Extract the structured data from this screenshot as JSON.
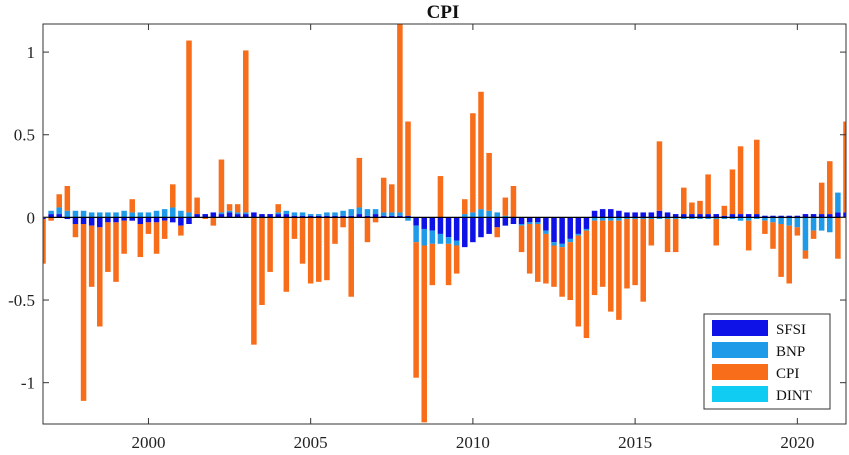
{
  "chart_data": {
    "type": "bar",
    "stacked": true,
    "title": "CPI",
    "xlabel": "",
    "ylabel": "",
    "xlim": [
      1996.75,
      2021.5
    ],
    "ylim": [
      -1.25,
      1.17
    ],
    "xticks": [
      2000,
      2005,
      2010,
      2015,
      2020
    ],
    "yticks": [
      1,
      0.5,
      0,
      -0.5,
      -1
    ],
    "ytick_labels": [
      "1",
      "0.5",
      "0",
      "-0.5",
      "-1"
    ],
    "grid": false,
    "legend_position": "bottom-right",
    "series": [
      {
        "name": "SFSI",
        "color": "#0f12e6"
      },
      {
        "name": "BNP",
        "color": "#1f9ae9"
      },
      {
        "name": "CPI",
        "color": "#f76d1a"
      },
      {
        "name": "DINT",
        "color": "#10ccf3"
      }
    ],
    "x": [
      1996.75,
      1997,
      1997.25,
      1997.5,
      1997.75,
      1998,
      1998.25,
      1998.5,
      1998.75,
      1999,
      1999.25,
      1999.5,
      1999.75,
      2000,
      2000.25,
      2000.5,
      2000.75,
      2001,
      2001.25,
      2001.5,
      2001.75,
      2002,
      2002.25,
      2002.5,
      2002.75,
      2003,
      2003.25,
      2003.5,
      2003.75,
      2004,
      2004.25,
      2004.5,
      2004.75,
      2005,
      2005.25,
      2005.5,
      2005.75,
      2006,
      2006.25,
      2006.5,
      2006.75,
      2007,
      2007.25,
      2007.5,
      2007.75,
      2008,
      2008.25,
      2008.5,
      2008.75,
      2009,
      2009.25,
      2009.5,
      2009.75,
      2010,
      2010.25,
      2010.5,
      2010.75,
      2011,
      2011.25,
      2011.5,
      2011.75,
      2012,
      2012.25,
      2012.5,
      2012.75,
      2013,
      2013.25,
      2013.5,
      2013.75,
      2014,
      2014.25,
      2014.5,
      2014.75,
      2015,
      2015.25,
      2015.5,
      2015.75,
      2016,
      2016.25,
      2016.5,
      2016.75,
      2017,
      2017.25,
      2017.5,
      2017.75,
      2018,
      2018.25,
      2018.5,
      2018.75,
      2019,
      2019.25,
      2019.5,
      2019.75,
      2020,
      2020.25,
      2020.5,
      2020.75,
      2021,
      2021.25,
      2021.5
    ],
    "values": {
      "SFSI": [
        -0.01,
        0.02,
        0.02,
        -0.01,
        -0.04,
        -0.04,
        -0.05,
        -0.06,
        -0.03,
        -0.03,
        -0.02,
        -0.02,
        -0.04,
        -0.03,
        -0.03,
        -0.02,
        -0.03,
        -0.05,
        -0.04,
        0.02,
        0.02,
        0.03,
        0.02,
        0.03,
        0.02,
        0.02,
        0.03,
        0.02,
        0.02,
        0.02,
        0.02,
        0.01,
        0.01,
        0.01,
        0.01,
        0.01,
        0.01,
        0.01,
        0.01,
        0.02,
        0.01,
        0.02,
        0.01,
        0.01,
        0.01,
        0.01,
        -0.05,
        -0.07,
        -0.08,
        -0.1,
        -0.12,
        -0.14,
        -0.18,
        -0.15,
        -0.12,
        -0.1,
        -0.06,
        -0.05,
        -0.04,
        -0.04,
        -0.03,
        -0.03,
        -0.08,
        -0.15,
        -0.16,
        -0.13,
        -0.1,
        -0.07,
        0.04,
        0.05,
        0.05,
        0.04,
        0.03,
        0.03,
        0.03,
        0.03,
        0.04,
        0.03,
        0.02,
        0.02,
        0.02,
        0.02,
        0.02,
        0.02,
        0.01,
        0.02,
        0.02,
        0.02,
        0.02,
        0.01,
        0.01,
        0.01,
        0.01,
        0.01,
        0.02,
        0.02,
        0.02,
        0.02,
        0.03,
        0.03
      ],
      "BNP": [
        0.0,
        0.02,
        0.04,
        0.04,
        0.04,
        0.04,
        0.03,
        0.03,
        0.03,
        0.03,
        0.04,
        0.03,
        0.03,
        0.03,
        0.04,
        0.05,
        0.06,
        0.04,
        0.03,
        0.0,
        0.0,
        0.0,
        0.01,
        0.01,
        0.01,
        0.01,
        0.0,
        0.0,
        0.0,
        0.01,
        0.02,
        0.02,
        0.02,
        0.01,
        0.01,
        0.02,
        0.02,
        0.03,
        0.04,
        0.04,
        0.04,
        0.03,
        0.02,
        0.02,
        0.02,
        -0.02,
        -0.1,
        -0.1,
        -0.08,
        -0.06,
        -0.04,
        -0.03,
        0.02,
        0.03,
        0.05,
        0.04,
        0.03,
        0.01,
        0.0,
        -0.01,
        -0.01,
        -0.01,
        -0.02,
        -0.02,
        -0.02,
        -0.02,
        -0.01,
        -0.01,
        -0.02,
        -0.02,
        -0.02,
        -0.02,
        -0.01,
        -0.01,
        -0.01,
        -0.01,
        -0.01,
        -0.01,
        -0.01,
        -0.01,
        -0.01,
        -0.01,
        -0.01,
        -0.01,
        -0.01,
        -0.01,
        -0.02,
        -0.02,
        -0.01,
        -0.02,
        -0.03,
        -0.04,
        -0.05,
        -0.06,
        -0.2,
        -0.08,
        -0.08,
        -0.09,
        0.12,
        0.0
      ],
      "CPI": [
        -0.27,
        -0.02,
        0.08,
        0.15,
        -0.08,
        -1.07,
        -0.37,
        -0.6,
        -0.3,
        -0.36,
        -0.2,
        0.08,
        -0.2,
        -0.07,
        -0.19,
        -0.11,
        0.14,
        -0.06,
        1.04,
        0.1,
        -0.01,
        -0.05,
        0.32,
        0.04,
        0.05,
        0.98,
        -0.77,
        -0.53,
        -0.33,
        0.05,
        -0.45,
        -0.13,
        -0.28,
        -0.4,
        -0.39,
        -0.38,
        -0.16,
        -0.06,
        -0.48,
        0.3,
        -0.15,
        -0.03,
        0.21,
        0.17,
        1.14,
        0.57,
        -0.82,
        -1.07,
        -0.25,
        0.25,
        -0.25,
        -0.17,
        0.09,
        0.6,
        0.71,
        0.35,
        -0.06,
        0.11,
        0.19,
        -0.16,
        -0.3,
        -0.35,
        -0.3,
        -0.25,
        -0.3,
        -0.35,
        -0.55,
        -0.65,
        -0.45,
        -0.4,
        -0.55,
        -0.6,
        -0.42,
        -0.4,
        -0.5,
        -0.16,
        0.42,
        -0.2,
        -0.2,
        0.16,
        0.07,
        0.08,
        0.24,
        -0.16,
        0.06,
        0.27,
        0.41,
        -0.18,
        0.45,
        -0.08,
        -0.16,
        -0.32,
        -0.35,
        -0.05,
        -0.05,
        -0.05,
        0.19,
        0.32,
        -0.25,
        0.55
      ],
      "DINT": [
        0.0,
        0.0,
        0.0,
        0.0,
        0.0,
        0.0,
        0.0,
        0.0,
        0.0,
        0.0,
        0.0,
        0.0,
        0.0,
        0.0,
        0.0,
        0.0,
        0.0,
        0.0,
        0.0,
        0.0,
        0.0,
        0.0,
        0.0,
        0.0,
        0.0,
        0.0,
        0.0,
        0.0,
        0.0,
        0.0,
        0.0,
        0.0,
        0.0,
        0.0,
        0.0,
        0.0,
        0.0,
        0.0,
        0.0,
        0.0,
        0.0,
        0.0,
        0.0,
        0.0,
        0.0,
        0.0,
        0.0,
        0.0,
        0.0,
        0.0,
        0.0,
        0.0,
        0.0,
        0.0,
        0.0,
        0.0,
        0.0,
        0.0,
        0.0,
        0.0,
        0.0,
        0.0,
        0.0,
        0.0,
        0.0,
        0.0,
        0.0,
        0.0,
        0.0,
        0.0,
        0.0,
        0.0,
        0.0,
        0.0,
        0.0,
        0.0,
        0.0,
        0.0,
        0.0,
        0.0,
        0.0,
        0.0,
        0.0,
        0.0,
        0.0,
        0.0,
        0.0,
        0.0,
        0.0,
        0.0,
        0.0,
        0.0,
        0.0,
        0.0,
        0.0,
        0.0,
        0.0,
        0.0,
        0.0,
        0.0
      ]
    }
  }
}
